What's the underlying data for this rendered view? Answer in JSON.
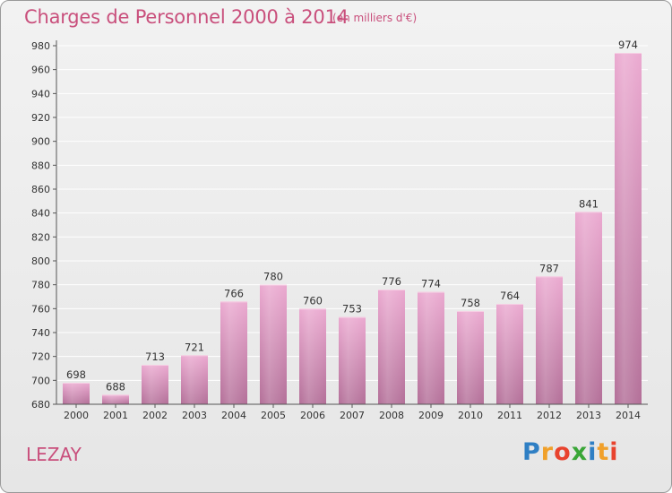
{
  "header": {
    "title": "Charges de Personnel 2000 à 2014",
    "subtitle": "(en milliers d'€)"
  },
  "footer": {
    "commune": "LEZAY",
    "logo_letters": [
      "P",
      "r",
      "o",
      "x",
      "i",
      "t",
      "i"
    ],
    "logo_colors": [
      "#2f7fc4",
      "#f0a02a",
      "#e8432e",
      "#39a637",
      "#2f7fc4",
      "#f0a02a",
      "#e8432e"
    ]
  },
  "colors": {
    "title": "#c94f7c",
    "bar_top": "#eba9d0",
    "bar_bottom": "#b36f98",
    "grid": "#ffffff",
    "axis": "#555555"
  },
  "chart_data": {
    "type": "bar",
    "categories": [
      "2000",
      "2001",
      "2002",
      "2003",
      "2004",
      "2005",
      "2006",
      "2007",
      "2008",
      "2009",
      "2010",
      "2011",
      "2012",
      "2013",
      "2014"
    ],
    "values": [
      698,
      688,
      713,
      721,
      766,
      780,
      760,
      753,
      776,
      774,
      758,
      764,
      787,
      841,
      974
    ],
    "title": "Charges de Personnel 2000 à 2014",
    "subtitle": "(en milliers d'€)",
    "xlabel": "",
    "ylabel": "",
    "ylim": [
      680,
      980
    ],
    "ytick_step": 20,
    "grid": true,
    "data_labels": true
  }
}
